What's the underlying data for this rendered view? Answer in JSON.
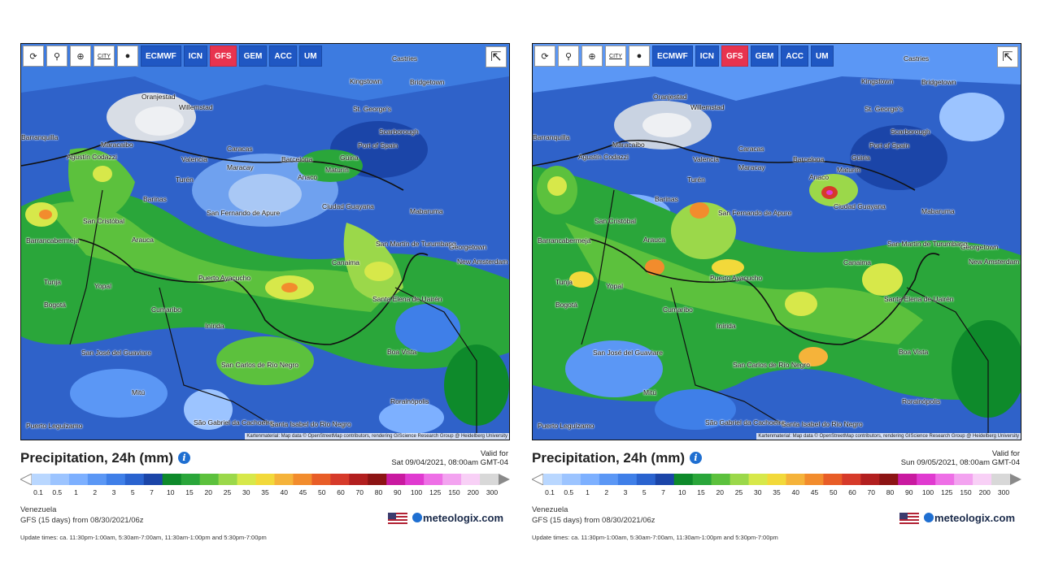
{
  "panels": [
    {
      "toolbar": {
        "models": [
          "ECMWF",
          "ICN",
          "GFS",
          "GEM",
          "ACC",
          "UM"
        ],
        "active_model": "GFS",
        "icons": [
          "refresh-icon",
          "location-pin-icon",
          "zoom-icon",
          "city-toggle-icon",
          "dot-icon"
        ],
        "city_label": "CITY"
      },
      "cities": [
        {
          "name": "Castries"
        },
        {
          "name": "Kingstown"
        },
        {
          "name": "Bridgetown"
        },
        {
          "name": "Oranjestad"
        },
        {
          "name": "Willemstad"
        },
        {
          "name": "St. George's"
        },
        {
          "name": "Scarborough"
        },
        {
          "name": "Port of Spain"
        },
        {
          "name": "Barranquilla"
        },
        {
          "name": "Maracaibo"
        },
        {
          "name": "Valencia"
        },
        {
          "name": "Caracas"
        },
        {
          "name": "Maracay"
        },
        {
          "name": "Barcelona"
        },
        {
          "name": "Güiria"
        },
        {
          "name": "Maturín"
        },
        {
          "name": "Agustín Codazzi"
        },
        {
          "name": "Anaco"
        },
        {
          "name": "Turén"
        },
        {
          "name": "Barinas"
        },
        {
          "name": "Ciudad Guayana"
        },
        {
          "name": "San Fernando de Apure"
        },
        {
          "name": "San Cristóbal"
        },
        {
          "name": "Mabaruma"
        },
        {
          "name": "Barrancabermeja"
        },
        {
          "name": "Arauca"
        },
        {
          "name": "San Martín de Turumbang"
        },
        {
          "name": "Georgetown"
        },
        {
          "name": "New Amsterdam"
        },
        {
          "name": "Canaima"
        },
        {
          "name": "Tunja"
        },
        {
          "name": "Yopal"
        },
        {
          "name": "Puerto Ayacucho"
        },
        {
          "name": "Bogotá"
        },
        {
          "name": "Cumaribo"
        },
        {
          "name": "Santa Elena de Uairén"
        },
        {
          "name": "Inírida"
        },
        {
          "name": "San José del Guaviare"
        },
        {
          "name": "Boa Vista"
        },
        {
          "name": "San Carlos de Río Negro"
        },
        {
          "name": "Mitú"
        },
        {
          "name": "Rorainópolis"
        },
        {
          "name": "São Gabriel da Cachoeira"
        },
        {
          "name": "Santa Isabel do Rio Negro"
        },
        {
          "name": "Puerto Leguízamo"
        }
      ],
      "attribution": "Kartenmaterial: Map data © OpenStreetMap contributors, rendering GIScience Research Group @ Heidelberg University",
      "title": "Precipitation, 24h (mm)",
      "valid_label": "Valid for",
      "valid_time": "Sat 09/04/2021, 08:00am GMT-04",
      "region": "Venezuela",
      "model_run": "GFS (15 days) from 08/30/2021/06z",
      "update_times": "Update times: ca. 11:30pm-1:00am, 5:30am-7:00am, 11:30am-1:00pm and 5:30pm-7:00pm",
      "brand": "meteologix.com"
    },
    {
      "toolbar": {
        "models": [
          "ECMWF",
          "ICN",
          "GFS",
          "GEM",
          "ACC",
          "UM"
        ],
        "active_model": "GFS",
        "icons": [
          "refresh-icon",
          "location-pin-icon",
          "zoom-icon",
          "city-toggle-icon",
          "dot-icon"
        ],
        "city_label": "CITY"
      },
      "cities": [
        {
          "name": "Castries"
        },
        {
          "name": "Kingstown"
        },
        {
          "name": "Bridgetown"
        },
        {
          "name": "Oranjestad"
        },
        {
          "name": "Willemstad"
        },
        {
          "name": "St. George's"
        },
        {
          "name": "Scarborough"
        },
        {
          "name": "Port of Spain"
        },
        {
          "name": "Barranquilla"
        },
        {
          "name": "Maracaibo"
        },
        {
          "name": "Valencia"
        },
        {
          "name": "Caracas"
        },
        {
          "name": "Maracay"
        },
        {
          "name": "Barcelona"
        },
        {
          "name": "Güiria"
        },
        {
          "name": "Maturín"
        },
        {
          "name": "Agustín Codazzi"
        },
        {
          "name": "Anaco"
        },
        {
          "name": "Turén"
        },
        {
          "name": "Barinas"
        },
        {
          "name": "Ciudad Guayana"
        },
        {
          "name": "San Fernando de Apure"
        },
        {
          "name": "San Cristóbal"
        },
        {
          "name": "Mabaruma"
        },
        {
          "name": "Barrancabermeja"
        },
        {
          "name": "Arauca"
        },
        {
          "name": "San Martín de Turumbang"
        },
        {
          "name": "Georgetown"
        },
        {
          "name": "New Amsterdam"
        },
        {
          "name": "Canaima"
        },
        {
          "name": "Tunja"
        },
        {
          "name": "Yopal"
        },
        {
          "name": "Puerto Ayacucho"
        },
        {
          "name": "Bogotá"
        },
        {
          "name": "Cumaribo"
        },
        {
          "name": "Santa Elena de Uairén"
        },
        {
          "name": "Inírida"
        },
        {
          "name": "San José del Guaviare"
        },
        {
          "name": "Boa Vista"
        },
        {
          "name": "San Carlos de Río Negro"
        },
        {
          "name": "Mitú"
        },
        {
          "name": "Rorainópolis"
        },
        {
          "name": "São Gabriel da Cachoeira"
        },
        {
          "name": "Santa Isabel do Rio Negro"
        },
        {
          "name": "Puerto Leguízamo"
        }
      ],
      "attribution": "Kartenmaterial: Map data © OpenStreetMap contributors, rendering GIScience Research Group @ Heidelberg University",
      "title": "Precipitation, 24h (mm)",
      "valid_label": "Valid for",
      "valid_time": "Sun 09/05/2021, 08:00am GMT-04",
      "region": "Venezuela",
      "model_run": "GFS (15 days) from 08/30/2021/06z",
      "update_times": "Update times: ca. 11:30pm-1:00am, 5:30am-7:00am, 11:30am-1:00pm and 5:30pm-7:00pm",
      "brand": "meteologix.com"
    }
  ],
  "legend": {
    "values": [
      "0.1",
      "0.5",
      "1",
      "2",
      "3",
      "5",
      "7",
      "10",
      "15",
      "20",
      "25",
      "30",
      "35",
      "40",
      "45",
      "50",
      "60",
      "70",
      "80",
      "90",
      "100",
      "125",
      "150",
      "200",
      "300"
    ],
    "colors": [
      "#b9d7ff",
      "#9cc4ff",
      "#7db0ff",
      "#5b97f5",
      "#3f7fe8",
      "#2a63cf",
      "#1b45a8",
      "#0e8a2b",
      "#2aa63a",
      "#5cc13d",
      "#9bd84a",
      "#d7e84a",
      "#f2d93a",
      "#f5b33a",
      "#f28c2d",
      "#e85d27",
      "#d63a2a",
      "#b21f1f",
      "#8c1414",
      "#c91aa0",
      "#e03ad0",
      "#ee6fe6",
      "#f3a3f0",
      "#f8d0f6",
      "#d8d8d8"
    ]
  }
}
